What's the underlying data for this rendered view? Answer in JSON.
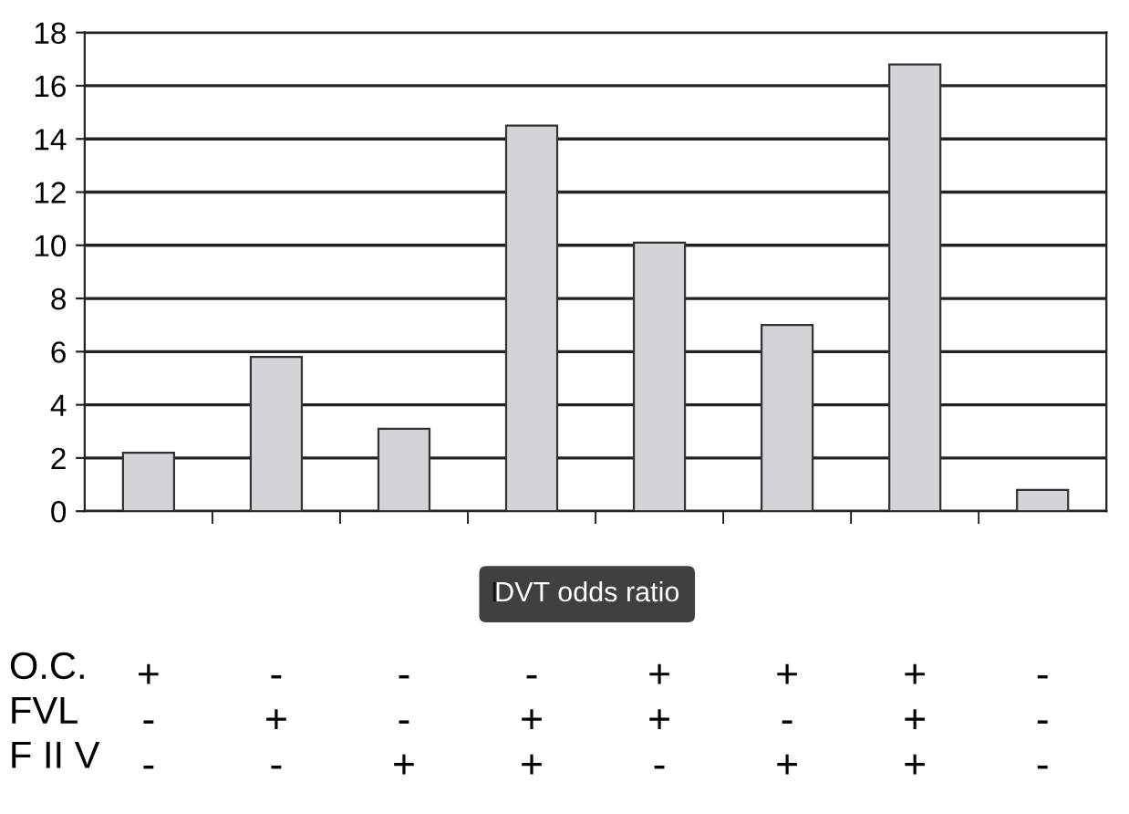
{
  "chart_data": {
    "type": "bar",
    "categories": [
      "+\n-\n-",
      "-\n+\n-",
      "-\n-\n+",
      "-\n+\n+",
      "+\n+\n-",
      "+\n-\n+",
      "+\n+\n+",
      "-\n-\n-"
    ],
    "series": [
      {
        "name": "DVT odds ratio",
        "color": "#d3d4d6",
        "values": [
          2.2,
          5.8,
          3.1,
          14.5,
          10.1,
          7.0,
          16.8,
          0.8
        ]
      }
    ],
    "ylim": [
      0,
      18
    ],
    "yticks": [
      0,
      2,
      4,
      6,
      8,
      10,
      12,
      14,
      16,
      18
    ],
    "grid": "y",
    "legend": "bottom",
    "annotations": [
      "O.C.",
      "FVL",
      "F II V"
    ]
  }
}
